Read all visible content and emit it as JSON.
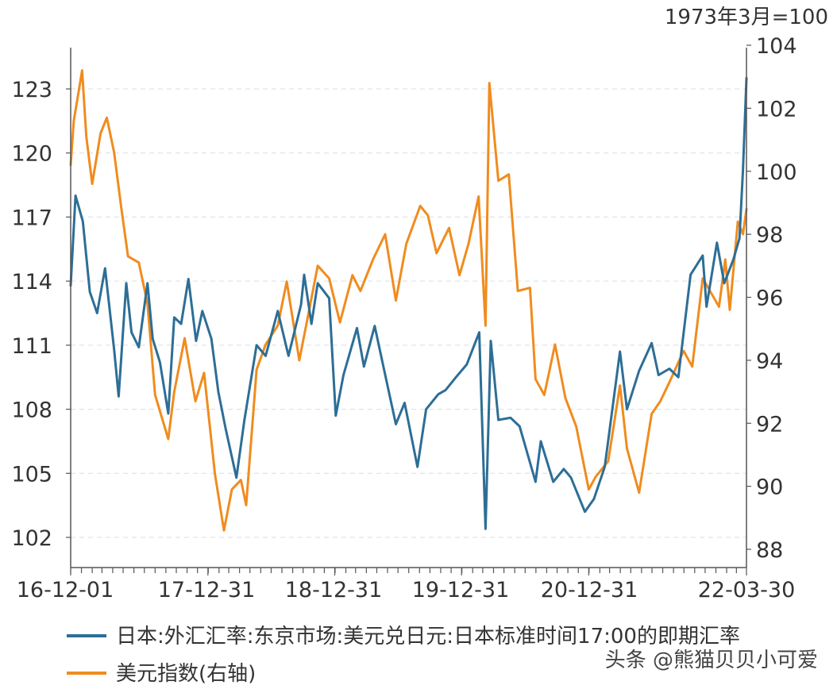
{
  "chart_data": {
    "type": "line",
    "title": "",
    "right_axis_unit": "1973年3月=100",
    "x_tick_labels": [
      "16-12-01",
      "17-12-31",
      "18-12-31",
      "19-12-31",
      "20-12-31",
      "22-03-30"
    ],
    "x_range": [
      "2016-12-01",
      "2022-03-30"
    ],
    "left_axis": {
      "ticks": [
        102,
        105,
        108,
        111,
        114,
        117,
        120,
        123
      ],
      "ylim": [
        101,
        125
      ]
    },
    "right_axis": {
      "ticks": [
        88,
        90,
        92,
        94,
        96,
        98,
        100,
        102,
        104
      ],
      "ylim": [
        88,
        104
      ]
    },
    "grid": true,
    "legend_position": "bottom-left",
    "series": [
      {
        "name": "日本:外汇汇率:东京市场:美元兑日元:日本标准时间17:00的即期汇率",
        "axis": "left",
        "color": "#2d6e96",
        "points": [
          [
            "2016-12-01",
            113.8
          ],
          [
            "2016-12-15",
            118.0
          ],
          [
            "2017-01-05",
            116.8
          ],
          [
            "2017-01-25",
            113.5
          ],
          [
            "2017-02-15",
            112.5
          ],
          [
            "2017-03-10",
            114.6
          ],
          [
            "2017-04-05",
            110.8
          ],
          [
            "2017-04-18",
            108.6
          ],
          [
            "2017-05-10",
            113.9
          ],
          [
            "2017-05-25",
            111.6
          ],
          [
            "2017-06-15",
            110.9
          ],
          [
            "2017-07-10",
            113.9
          ],
          [
            "2017-07-25",
            111.3
          ],
          [
            "2017-08-15",
            110.2
          ],
          [
            "2017-09-08",
            107.8
          ],
          [
            "2017-09-25",
            112.3
          ],
          [
            "2017-10-15",
            112.0
          ],
          [
            "2017-11-05",
            114.1
          ],
          [
            "2017-11-27",
            111.2
          ],
          [
            "2017-12-15",
            112.6
          ],
          [
            "2018-01-10",
            111.3
          ],
          [
            "2018-01-30",
            108.8
          ],
          [
            "2018-02-20",
            107.1
          ],
          [
            "2018-03-23",
            104.8
          ],
          [
            "2018-04-15",
            107.5
          ],
          [
            "2018-05-20",
            111.0
          ],
          [
            "2018-06-15",
            110.5
          ],
          [
            "2018-07-20",
            112.6
          ],
          [
            "2018-08-20",
            110.5
          ],
          [
            "2018-09-25",
            112.9
          ],
          [
            "2018-10-04",
            114.3
          ],
          [
            "2018-10-25",
            112.0
          ],
          [
            "2018-11-12",
            113.9
          ],
          [
            "2018-12-15",
            113.2
          ],
          [
            "2019-01-03",
            107.7
          ],
          [
            "2019-01-25",
            109.6
          ],
          [
            "2019-03-05",
            111.8
          ],
          [
            "2019-03-25",
            110.0
          ],
          [
            "2019-04-25",
            111.9
          ],
          [
            "2019-05-20",
            110.0
          ],
          [
            "2019-06-25",
            107.3
          ],
          [
            "2019-07-20",
            108.3
          ],
          [
            "2019-08-26",
            105.3
          ],
          [
            "2019-09-20",
            108.0
          ],
          [
            "2019-10-25",
            108.7
          ],
          [
            "2019-11-15",
            108.9
          ],
          [
            "2019-12-15",
            109.5
          ],
          [
            "2020-01-15",
            110.1
          ],
          [
            "2020-02-20",
            111.6
          ],
          [
            "2020-03-09",
            102.4
          ],
          [
            "2020-03-24",
            111.2
          ],
          [
            "2020-04-15",
            107.5
          ],
          [
            "2020-05-20",
            107.6
          ],
          [
            "2020-06-15",
            107.2
          ],
          [
            "2020-07-31",
            104.6
          ],
          [
            "2020-08-15",
            106.5
          ],
          [
            "2020-09-20",
            104.6
          ],
          [
            "2020-10-20",
            105.2
          ],
          [
            "2020-11-10",
            104.8
          ],
          [
            "2020-12-20",
            103.2
          ],
          [
            "2021-01-15",
            103.8
          ],
          [
            "2021-02-15",
            105.3
          ],
          [
            "2021-03-31",
            110.7
          ],
          [
            "2021-04-20",
            108.0
          ],
          [
            "2021-05-25",
            109.8
          ],
          [
            "2021-06-30",
            111.1
          ],
          [
            "2021-07-20",
            109.6
          ],
          [
            "2021-08-20",
            109.9
          ],
          [
            "2021-09-15",
            109.5
          ],
          [
            "2021-10-20",
            114.3
          ],
          [
            "2021-11-24",
            115.2
          ],
          [
            "2021-12-05",
            112.8
          ],
          [
            "2022-01-04",
            115.8
          ],
          [
            "2022-01-25",
            113.9
          ],
          [
            "2022-02-20",
            115.0
          ],
          [
            "2022-03-10",
            116.0
          ],
          [
            "2022-03-20",
            119.2
          ],
          [
            "2022-03-30",
            123.5
          ]
        ]
      },
      {
        "name": "美元指数(右轴)",
        "axis": "right",
        "color": "#f08c1e",
        "points": [
          [
            "2016-12-01",
            100.2
          ],
          [
            "2016-12-10",
            101.6
          ],
          [
            "2016-12-25",
            102.6
          ],
          [
            "2017-01-03",
            103.2
          ],
          [
            "2017-01-15",
            101.1
          ],
          [
            "2017-02-01",
            99.6
          ],
          [
            "2017-02-25",
            101.2
          ],
          [
            "2017-03-15",
            101.7
          ],
          [
            "2017-04-05",
            100.6
          ],
          [
            "2017-04-25",
            98.9
          ],
          [
            "2017-05-15",
            97.3
          ],
          [
            "2017-06-15",
            97.1
          ],
          [
            "2017-07-10",
            95.8
          ],
          [
            "2017-08-01",
            92.9
          ],
          [
            "2017-09-08",
            91.5
          ],
          [
            "2017-09-25",
            93.0
          ],
          [
            "2017-10-25",
            94.7
          ],
          [
            "2017-11-25",
            92.7
          ],
          [
            "2017-12-20",
            93.6
          ],
          [
            "2018-01-20",
            90.4
          ],
          [
            "2018-02-15",
            88.6
          ],
          [
            "2018-03-10",
            89.9
          ],
          [
            "2018-04-05",
            90.2
          ],
          [
            "2018-04-20",
            89.4
          ],
          [
            "2018-05-20",
            93.7
          ],
          [
            "2018-06-15",
            94.5
          ],
          [
            "2018-07-20",
            95.1
          ],
          [
            "2018-08-15",
            96.5
          ],
          [
            "2018-09-20",
            94.0
          ],
          [
            "2018-10-15",
            95.4
          ],
          [
            "2018-11-12",
            97.0
          ],
          [
            "2018-12-15",
            96.6
          ],
          [
            "2019-01-15",
            95.2
          ],
          [
            "2019-02-20",
            96.7
          ],
          [
            "2019-03-15",
            96.2
          ],
          [
            "2019-04-20",
            97.2
          ],
          [
            "2019-05-25",
            98.0
          ],
          [
            "2019-06-25",
            95.9
          ],
          [
            "2019-07-25",
            97.7
          ],
          [
            "2019-09-03",
            98.9
          ],
          [
            "2019-09-25",
            98.6
          ],
          [
            "2019-10-20",
            97.4
          ],
          [
            "2019-11-25",
            98.2
          ],
          [
            "2019-12-25",
            96.7
          ],
          [
            "2020-01-20",
            97.7
          ],
          [
            "2020-02-18",
            99.2
          ],
          [
            "2020-03-09",
            95.1
          ],
          [
            "2020-03-20",
            102.8
          ],
          [
            "2020-04-15",
            99.7
          ],
          [
            "2020-05-15",
            99.9
          ],
          [
            "2020-06-10",
            96.2
          ],
          [
            "2020-07-15",
            96.3
          ],
          [
            "2020-07-31",
            93.4
          ],
          [
            "2020-08-25",
            92.9
          ],
          [
            "2020-09-25",
            94.5
          ],
          [
            "2020-10-25",
            92.8
          ],
          [
            "2020-11-25",
            91.9
          ],
          [
            "2020-12-31",
            89.9
          ],
          [
            "2021-01-20",
            90.3
          ],
          [
            "2021-02-25",
            90.8
          ],
          [
            "2021-03-31",
            93.2
          ],
          [
            "2021-04-20",
            91.2
          ],
          [
            "2021-05-25",
            89.8
          ],
          [
            "2021-06-30",
            92.3
          ],
          [
            "2021-07-25",
            92.7
          ],
          [
            "2021-08-20",
            93.3
          ],
          [
            "2021-09-30",
            94.3
          ],
          [
            "2021-10-25",
            93.8
          ],
          [
            "2021-11-24",
            96.6
          ],
          [
            "2021-12-15",
            96.2
          ],
          [
            "2022-01-10",
            95.7
          ],
          [
            "2022-01-28",
            97.2
          ],
          [
            "2022-02-10",
            95.6
          ],
          [
            "2022-03-05",
            98.4
          ],
          [
            "2022-03-20",
            98.0
          ],
          [
            "2022-03-30",
            98.8
          ]
        ]
      }
    ]
  },
  "legend": {
    "items": [
      {
        "label": "日本:外汇汇率:东京市场:美元兑日元:日本标准时间17:00的即期汇率",
        "color": "#2d6e96"
      },
      {
        "label": "美元指数(右轴)",
        "color": "#f08c1e"
      }
    ]
  },
  "watermark": "头条 @熊猫贝贝小可爱"
}
